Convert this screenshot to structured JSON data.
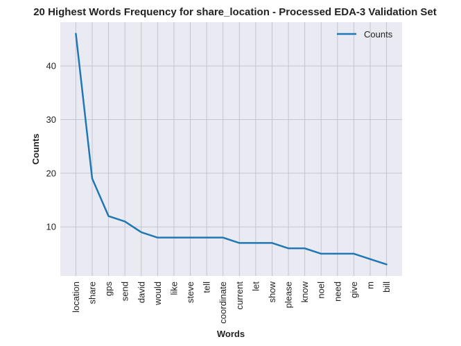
{
  "chart_data": {
    "type": "line",
    "title": "20 Highest Words Frequency for share_location - Processed EDA-3 Validation Set",
    "xlabel": "Words",
    "ylabel": "Counts",
    "categories": [
      "location",
      "share",
      "gps",
      "send",
      "david",
      "would",
      "like",
      "steve",
      "tell",
      "coordinate",
      "current",
      "let",
      "show",
      "please",
      "know",
      "noel",
      "need",
      "give",
      "m",
      "bill"
    ],
    "series": [
      {
        "name": "Counts",
        "values": [
          46,
          19,
          12,
          11,
          9,
          8,
          8,
          8,
          8,
          8,
          7,
          7,
          7,
          6,
          6,
          5,
          5,
          5,
          4,
          3
        ]
      }
    ],
    "ylim": [
      0.85,
      48.15
    ],
    "yticks": [
      10,
      20,
      30,
      40
    ],
    "grid": true,
    "legend": "top-right",
    "colors": {
      "line": "#1f77b4",
      "background": "#eaeaf2",
      "grid": "#c0c0c8"
    }
  }
}
